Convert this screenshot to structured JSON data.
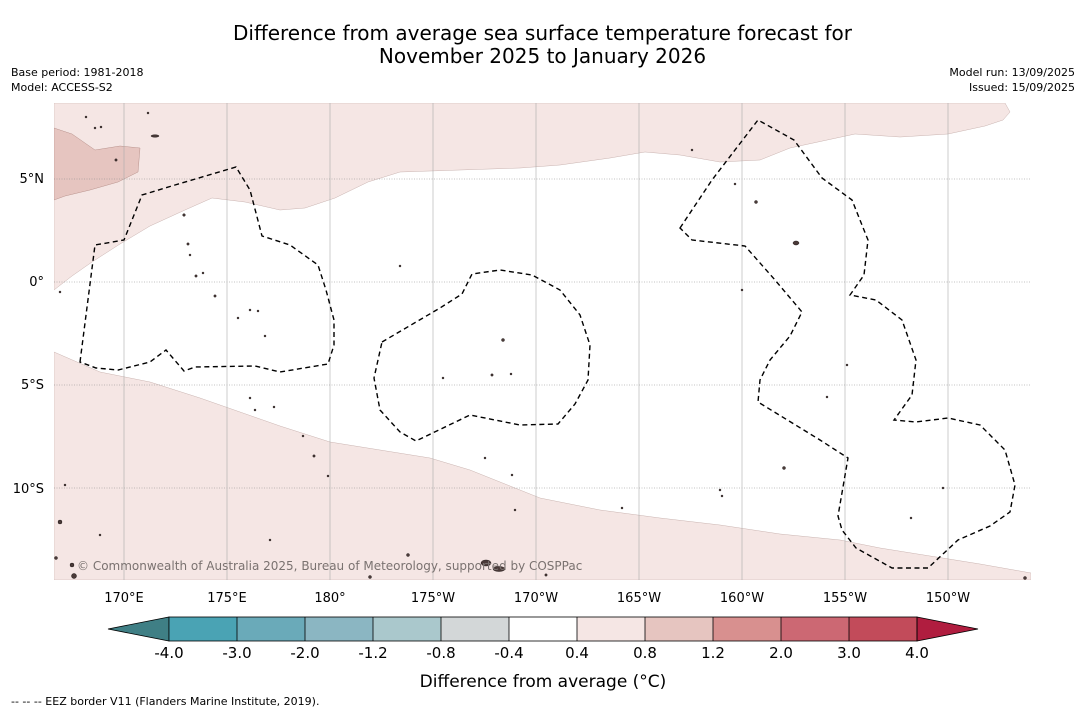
{
  "header": {
    "title_line1": "Difference from average sea surface temperature forecast for",
    "title_line2": "November 2025 to January 2026",
    "base_period": "Base period: 1981-2018",
    "model": "Model: ACCESS-S2",
    "model_run": "Model run: 13/09/2025",
    "issued": "Issued: 15/09/2025"
  },
  "map": {
    "lat_labels": [
      "5°N",
      "0°",
      "5°S",
      "10°S"
    ],
    "lon_labels": [
      "170°E",
      "175°E",
      "180°",
      "175°W",
      "170°W",
      "165°W",
      "160°W",
      "155°W",
      "150°W"
    ],
    "copyright": "© Commonwealth of Australia 2025, Bureau of Meteorology, supported by COSPPac",
    "colors": {
      "anomaly_0_4_to_0_8": "#f5e6e4",
      "anomaly_0_8_to_1_2": "#e6c5c0",
      "island": "#4a3a38",
      "eez_border": "#000000"
    }
  },
  "colorbar": {
    "ticks": [
      "-4.0",
      "-3.0",
      "-2.0",
      "-1.2",
      "-0.8",
      "-0.4",
      "0.4",
      "0.8",
      "1.2",
      "2.0",
      "3.0",
      "4.0"
    ],
    "colors": [
      "#3f7f85",
      "#4aa3b4",
      "#6aaab9",
      "#8bb6c2",
      "#aac8cc",
      "#d3d7d8",
      "#ffffff",
      "#f5e6e4",
      "#e6c5c0",
      "#d8908f",
      "#cc6873",
      "#c24b5a",
      "#b01d3f"
    ],
    "title": "Difference from average (°C)"
  },
  "footnote": "--  --  -- EEZ border V11 (Flanders Marine Institute, 2019)."
}
